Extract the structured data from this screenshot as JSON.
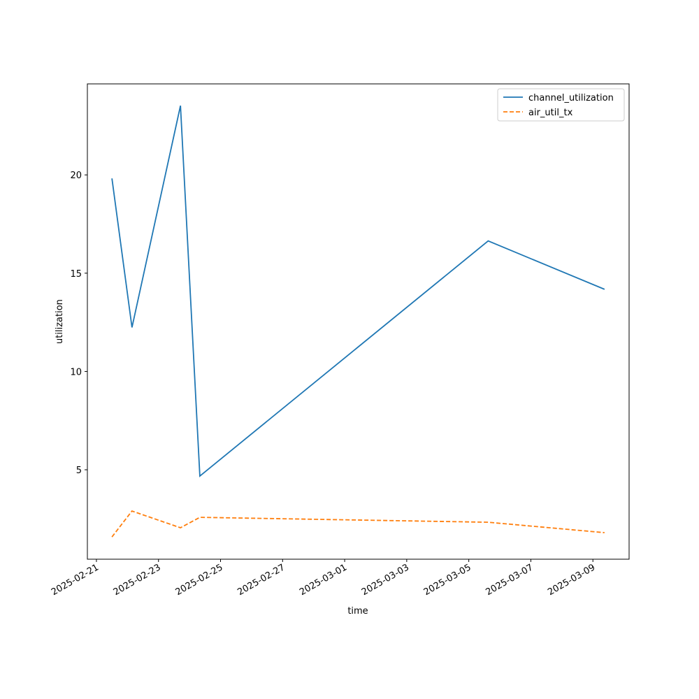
{
  "chart_data": {
    "type": "line",
    "x_label": "time",
    "y_label": "utilization",
    "x": [
      "2025-02-21T12:00Z",
      "2025-02-22T03:30Z",
      "2025-02-23T17:00Z",
      "2025-02-24T08:00Z",
      "2025-03-05T15:00Z",
      "2025-03-09T09:00Z"
    ],
    "series": [
      {
        "name": "channel_utilization",
        "color": "#1f77b4",
        "dash": "solid",
        "values": [
          19.82,
          12.24,
          23.52,
          4.68,
          16.64,
          14.18
        ]
      },
      {
        "name": "air_util_tx",
        "color": "#ff7f0e",
        "dash": "dashed",
        "values": [
          1.58,
          2.9,
          2.05,
          2.58,
          2.33,
          1.8
        ]
      }
    ],
    "xlim": [
      "2025-02-20T17:00Z",
      "2025-03-10T04:00Z"
    ],
    "xticks": [
      "2025-02-21",
      "2025-02-23",
      "2025-02-25",
      "2025-02-27",
      "2025-03-01",
      "2025-03-03",
      "2025-03-05",
      "2025-03-07",
      "2025-03-09"
    ],
    "ylim": [
      0.45,
      24.63
    ],
    "yticks": [
      5,
      10,
      15,
      20
    ],
    "grid": false,
    "legend": "upper right"
  }
}
